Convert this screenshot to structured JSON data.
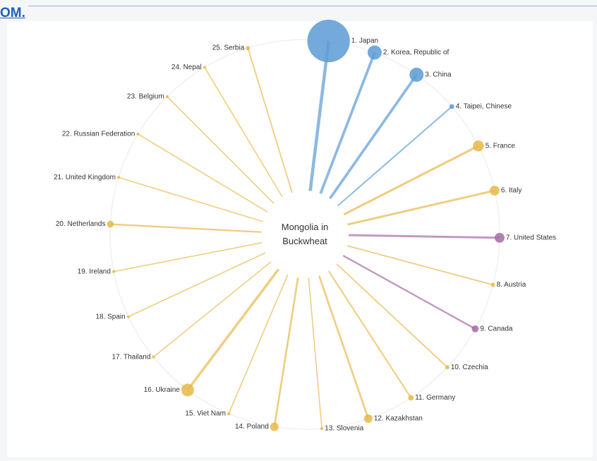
{
  "header_text": "OM.",
  "chart_data": {
    "type": "radial",
    "title": "Mongolia in Buckwheat",
    "categories": [
      "1. Japan",
      "2. Korea, Republic of",
      "3. China",
      "4. Taipei, Chinese",
      "5. France",
      "6. Italy",
      "7. United States",
      "8. Austria",
      "9. Canada",
      "10. Czechia",
      "11. Germany",
      "12. Kazakhstan",
      "13. Slovenia",
      "14. Poland",
      "15. Viet Nam",
      "16. Ukraine",
      "17. Thailand",
      "18. Spain",
      "19. Ireland",
      "20. Netherlands",
      "21. United Kingdom",
      "22. Russian Federation",
      "23. Belgium",
      "24. Nepal",
      "25. Serbia"
    ],
    "values": [
      30,
      3.3,
      3.3,
      0.4,
      2,
      1.6,
      1.6,
      0.3,
      0.8,
      0.3,
      0.5,
      1.2,
      0.15,
      1.2,
      0.15,
      2.7,
      0.15,
      0.15,
      0.15,
      0.8,
      0.15,
      0.15,
      0.15,
      0.15,
      0.3
    ],
    "colors": [
      "#5b9bd5",
      "#5b9bd5",
      "#5b9bd5",
      "#5b9bd5",
      "#e8b84a",
      "#e8b84a",
      "#a66aa6",
      "#e8b84a",
      "#a66aa6",
      "#e8b84a",
      "#e8b84a",
      "#e8b84a",
      "#e8b84a",
      "#e8b84a",
      "#e8b84a",
      "#e8b84a",
      "#e8b84a",
      "#e8b84a",
      "#e8b84a",
      "#e8b84a",
      "#e8b84a",
      "#e8b84a",
      "#e8b84a",
      "#e8b84a",
      "#e8b84a"
    ]
  }
}
